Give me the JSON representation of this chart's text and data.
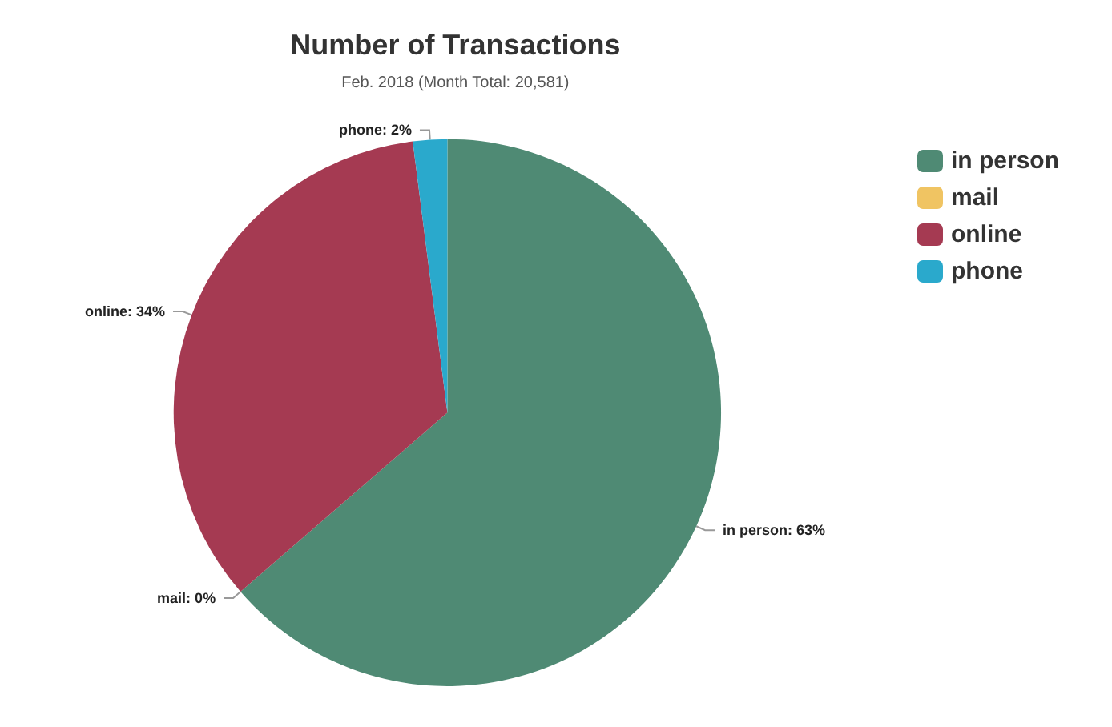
{
  "chart_data": {
    "type": "pie",
    "title": "Number of Transactions",
    "subtitle": "Feb. 2018 (Month Total: 20,581)",
    "categories": [
      "in person",
      "mail",
      "online",
      "phone"
    ],
    "values": [
      63,
      0,
      34,
      2
    ],
    "value_labels": [
      "in person: 63%",
      "mail: 0%",
      "online: 34%",
      "phone: 2%"
    ],
    "colors": [
      "#4f8a74",
      "#f0c462",
      "#a53a52",
      "#2aa9cc"
    ],
    "legend": "right"
  }
}
